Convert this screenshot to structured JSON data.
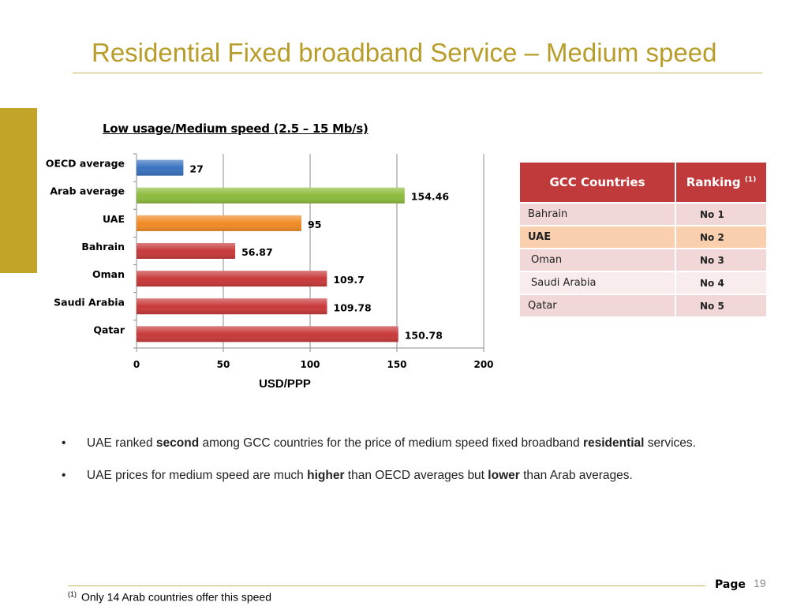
{
  "slide": {
    "title": "Residential Fixed broadband Service – Medium speed",
    "page_label": "Page",
    "page_number": "19",
    "footnote_marker": "(1)",
    "footnote_text": "Only 14 Arab countries offer this speed"
  },
  "chart_data": {
    "type": "bar",
    "orientation": "horizontal",
    "title": "Low usage/Medium speed (2.5 – 15 Mb/s)",
    "xlabel": "USD/PPP",
    "ylabel": "",
    "xlim": [
      0,
      200
    ],
    "xticks": [
      0,
      50,
      100,
      150,
      200
    ],
    "grid": true,
    "legend": "none",
    "categories": [
      "OECD average",
      "Arab average",
      "UAE",
      "Bahrain",
      "Oman",
      "Saudi Arabia",
      "Qatar"
    ],
    "values": [
      27,
      154.46,
      95,
      56.87,
      109.7,
      109.78,
      150.78
    ],
    "value_labels": [
      "27",
      "154.46",
      "95",
      "56.87",
      "109.7",
      "109.78",
      "150.78"
    ],
    "colors": [
      "#3a73c0",
      "#8cbb3c",
      "#f08a24",
      "#c8393a",
      "#c8393a",
      "#c8393a",
      "#c8393a"
    ]
  },
  "table": {
    "headers": [
      "GCC Countries",
      "Ranking"
    ],
    "ranking_superscript": "(1)",
    "rows": [
      {
        "country": "Bahrain",
        "rank": "No 1"
      },
      {
        "country": "UAE",
        "rank": "No 2"
      },
      {
        "country": "Oman",
        "rank": "No 3"
      },
      {
        "country": "Saudi Arabia",
        "rank": "No 4"
      },
      {
        "country": "Qatar",
        "rank": "No 5"
      }
    ]
  },
  "bullets": {
    "symbol": "•",
    "b1": {
      "t1": "UAE ranked ",
      "b1": "second",
      "t2": " among GCC countries for the price of medium speed fixed broadband ",
      "b2": "residential",
      "t3": " services."
    },
    "b2": {
      "t1": "UAE prices for medium speed are much ",
      "b1": "higher",
      "t2": " than OECD averages but ",
      "b2": "lower",
      "t3": " than Arab averages."
    }
  },
  "colors": {
    "title": "#b89d2a",
    "accent_bar": "#c2a528",
    "table_header": "#c0393b",
    "highlight_row": "#f9cfae"
  }
}
